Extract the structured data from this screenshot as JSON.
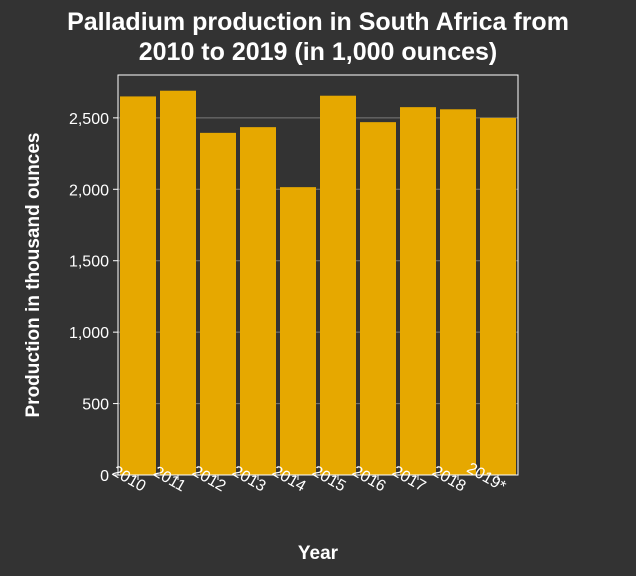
{
  "chart_data": {
    "type": "bar",
    "title_lines": [
      "Palladium production in South Africa from",
      "2010 to 2019 (in 1,000 ounces)"
    ],
    "xlabel": "Year",
    "ylabel": "Production in thousand ounces",
    "categories": [
      "2010",
      "2011",
      "2012",
      "2013",
      "2014",
      "2015",
      "2016",
      "2017",
      "2018",
      "2019*"
    ],
    "values": [
      2650,
      2690,
      2395,
      2435,
      2015,
      2655,
      2470,
      2575,
      2560,
      2500
    ],
    "ylim": [
      0,
      2800
    ],
    "yticks": [
      0,
      500,
      1000,
      1500,
      2000,
      2500
    ],
    "ytick_labels": [
      "0",
      "500",
      "1,000",
      "1,500",
      "2,000",
      "2,500"
    ],
    "grid": true,
    "bar_color": "#e6a800",
    "background_color": "#333333"
  }
}
